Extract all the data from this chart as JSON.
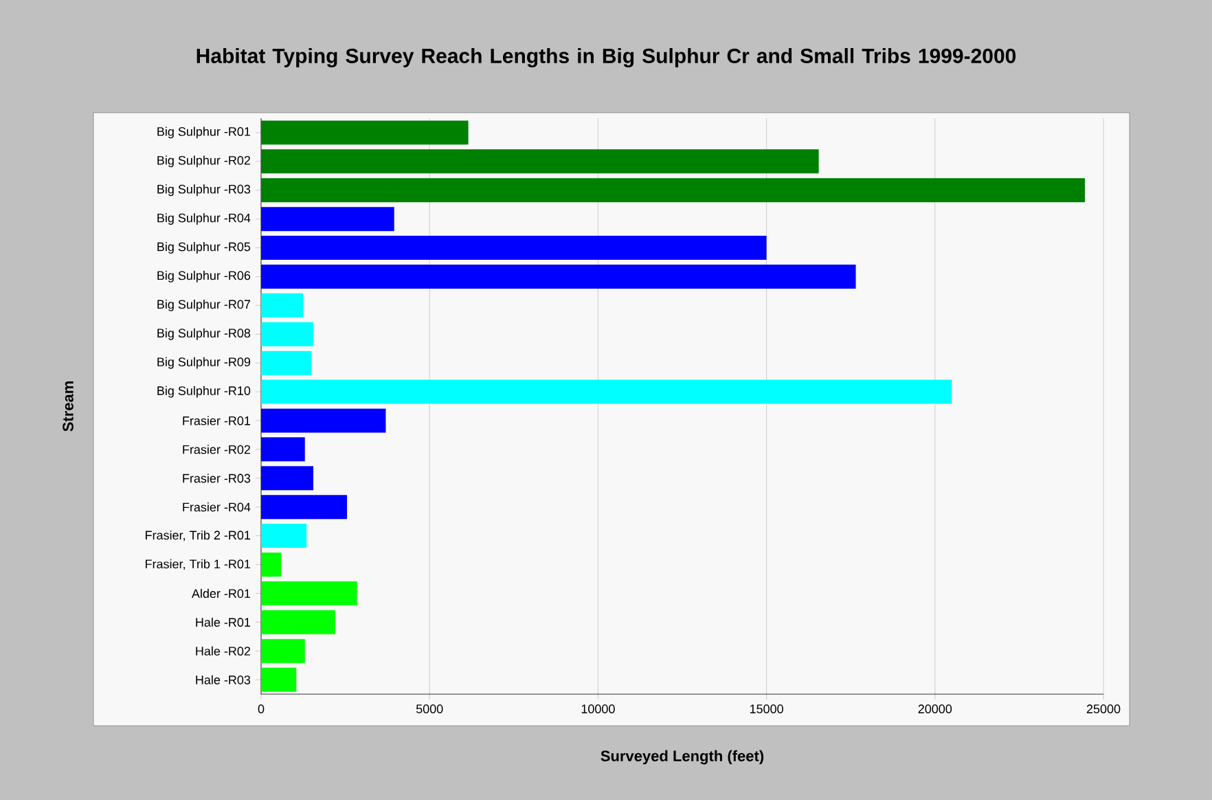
{
  "chart_data": {
    "type": "bar",
    "orientation": "horizontal",
    "title": "Habitat Typing Survey Reach Lengths in Big Sulphur Cr and Small Tribs 1999-2000",
    "xlabel": "Surveyed Length (feet)",
    "ylabel": "Stream",
    "categories": [
      "Big Sulphur -R01",
      "Big Sulphur -R02",
      "Big Sulphur -R03",
      "Big Sulphur -R04",
      "Big Sulphur -R05",
      "Big Sulphur -R06",
      "Big Sulphur -R07",
      "Big Sulphur -R08",
      "Big Sulphur -R09",
      "Big Sulphur -R10",
      "Frasier -R01",
      "Frasier -R02",
      "Frasier -R03",
      "Frasier -R04",
      "Frasier, Trib 2 -R01",
      "Frasier, Trib 1 -R01",
      "Alder -R01",
      "Hale -R01",
      "Hale -R02",
      "Hale -R03"
    ],
    "values": [
      6150,
      16550,
      24450,
      3950,
      15000,
      17650,
      1250,
      1550,
      1500,
      20500,
      3700,
      1300,
      1550,
      2550,
      1350,
      600,
      2850,
      2200,
      1300,
      1050
    ],
    "colors": [
      "#008000",
      "#008000",
      "#008000",
      "#0000ff",
      "#0000ff",
      "#0000ff",
      "#00ffff",
      "#00ffff",
      "#00ffff",
      "#00ffff",
      "#0000ff",
      "#0000ff",
      "#0000ff",
      "#0000ff",
      "#00ffff",
      "#00ff00",
      "#00ff00",
      "#00ff00",
      "#00ff00",
      "#00ff00"
    ],
    "xlim": [
      0,
      25000
    ],
    "xticks": [
      0,
      5000,
      10000,
      15000,
      20000,
      25000
    ],
    "grid": "x"
  }
}
